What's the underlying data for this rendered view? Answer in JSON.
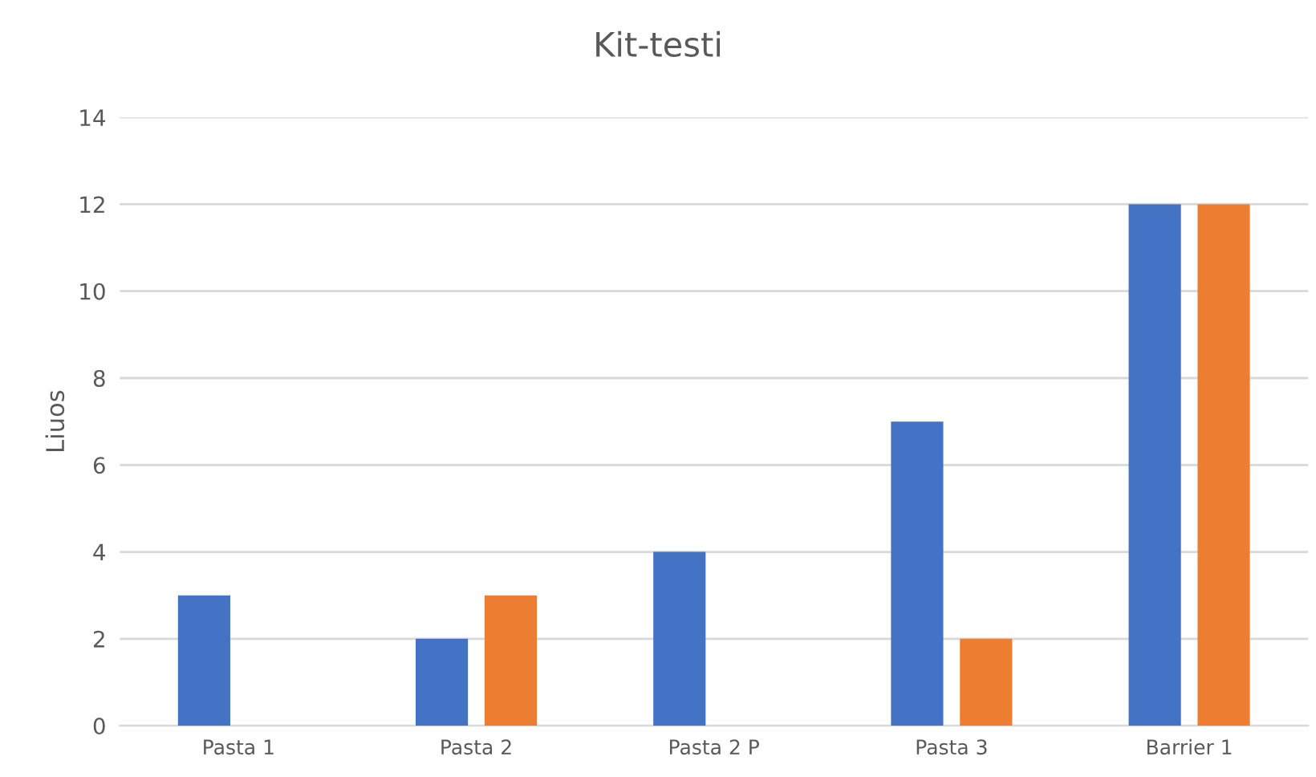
{
  "chart_data": {
    "type": "bar",
    "title": "Kit-testi",
    "ylabel": "Liuos",
    "categories": [
      "Pasta 1",
      "Pasta 2",
      "Pasta 2 P",
      "Pasta 3",
      "Barrier 1"
    ],
    "series": [
      {
        "color": "#4472c4",
        "values": [
          3,
          2,
          4,
          7,
          12
        ]
      },
      {
        "color": "#ed7d31",
        "values": [
          0,
          3,
          0,
          2,
          12
        ]
      }
    ],
    "ylim": [
      0,
      14
    ],
    "yticks": [
      0,
      2,
      4,
      6,
      8,
      10,
      12,
      14
    ],
    "grid": "y",
    "legend": false
  }
}
